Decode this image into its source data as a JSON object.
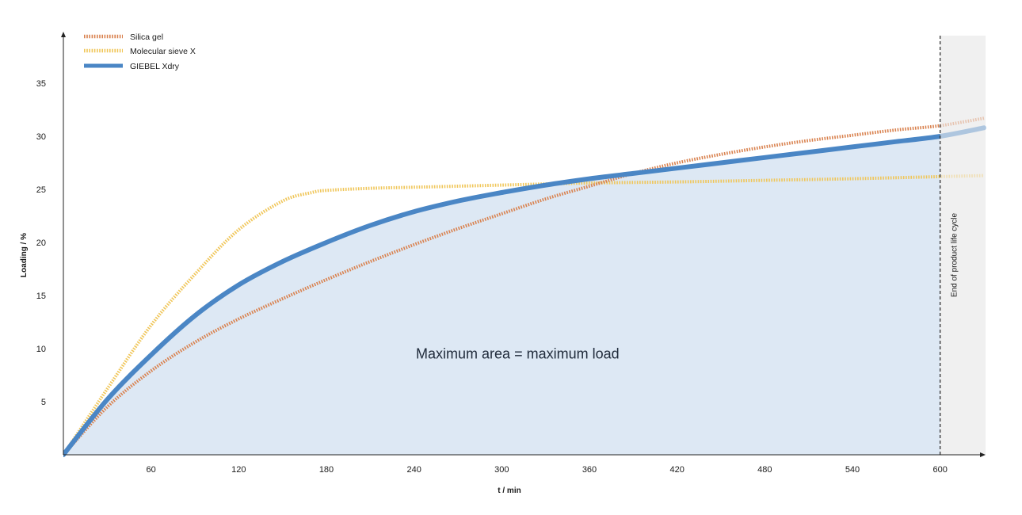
{
  "chart_data": {
    "type": "line",
    "title": "",
    "xlabel": "t / min",
    "ylabel": "Loading / %",
    "xlim": [
      0,
      630
    ],
    "ylim": [
      0,
      38
    ],
    "xticks": [
      60,
      120,
      180,
      240,
      300,
      360,
      420,
      480,
      540,
      600
    ],
    "yticks": [
      5,
      10,
      15,
      20,
      25,
      30,
      35
    ],
    "grid": false,
    "legend_position": "top-left",
    "colors": {
      "silica": "#d9824f",
      "molecular": "#f0c659",
      "giebel": "#4a86c5",
      "area_fill": "#dde8f4",
      "shade": "#f0f0f0"
    },
    "series": [
      {
        "name": "Silica gel",
        "style": "dotted",
        "x": [
          0,
          30,
          60,
          90,
          120,
          150,
          180,
          210,
          240,
          270,
          300,
          330,
          360,
          390,
          420,
          450,
          480,
          510,
          540,
          570,
          600,
          630
        ],
        "y": [
          0,
          4.5,
          7.9,
          10.6,
          12.8,
          14.7,
          16.5,
          18.2,
          19.8,
          21.3,
          22.7,
          24.1,
          25.3,
          26.5,
          27.5,
          28.3,
          29.0,
          29.6,
          30.1,
          30.6,
          31.0,
          31.7
        ]
      },
      {
        "name": "Molecular sieve X",
        "style": "dotted",
        "x": [
          0,
          30,
          60,
          90,
          120,
          150,
          170,
          180,
          210,
          240,
          300,
          360,
          420,
          480,
          540,
          600,
          630
        ],
        "y": [
          0,
          6.2,
          12.2,
          17.0,
          21.2,
          23.9,
          24.7,
          24.9,
          25.1,
          25.2,
          25.4,
          25.6,
          25.7,
          25.85,
          26.0,
          26.2,
          26.3
        ]
      },
      {
        "name": "GIEBEL Xdry",
        "style": "solid",
        "x": [
          0,
          30,
          60,
          90,
          120,
          150,
          180,
          210,
          240,
          270,
          300,
          330,
          360,
          390,
          420,
          450,
          480,
          510,
          540,
          570,
          600,
          630
        ],
        "y": [
          0,
          5.2,
          9.4,
          13.1,
          16.0,
          18.2,
          20.0,
          21.6,
          22.9,
          23.9,
          24.7,
          25.4,
          26.0,
          26.5,
          27.0,
          27.5,
          28.0,
          28.5,
          29.0,
          29.5,
          30.0,
          30.8
        ]
      }
    ],
    "annotations": [
      {
        "text": "Maximum area = maximum load",
        "x": 300,
        "y": 9.5
      },
      {
        "text": "End of product life cycle",
        "x": 600
      }
    ],
    "reference_line": {
      "x": 600,
      "style": "dashed"
    }
  }
}
